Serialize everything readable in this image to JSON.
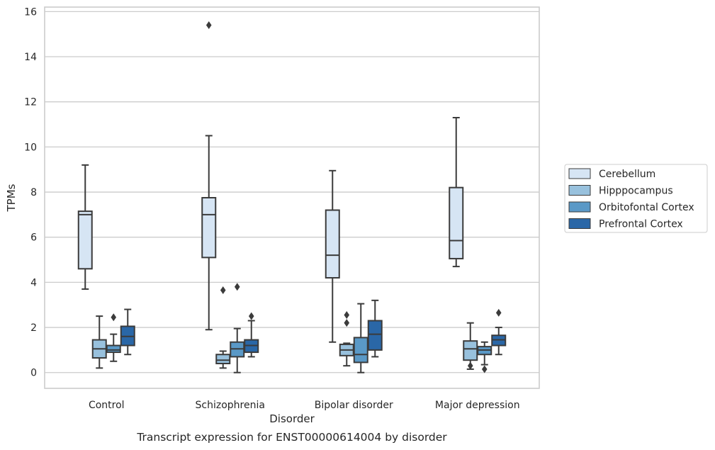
{
  "chart_data": {
    "type": "box",
    "caption": "Transcript expression for ENST00000614004 by disorder",
    "xlabel": "Disorder",
    "ylabel": "TPMs",
    "ylim": [
      -0.7,
      16.2
    ],
    "yticks": [
      0,
      2,
      4,
      6,
      8,
      10,
      12,
      14,
      16
    ],
    "grid": "horizontal",
    "legend_position": "right",
    "categories": [
      "Control",
      "Schizophrenia",
      "Bipolar disorder",
      "Major depression"
    ],
    "series": [
      {
        "name": "Cerebellum",
        "color": "#d6e5f4",
        "boxes": [
          {
            "whisker_low": 3.7,
            "q1": 4.6,
            "median": 7.0,
            "q3": 7.15,
            "whisker_high": 9.2,
            "outliers": []
          },
          {
            "whisker_low": 1.9,
            "q1": 5.1,
            "median": 7.0,
            "q3": 7.75,
            "whisker_high": 10.5,
            "outliers": [
              15.4
            ]
          },
          {
            "whisker_low": 1.35,
            "q1": 4.2,
            "median": 5.2,
            "q3": 7.2,
            "whisker_high": 8.95,
            "outliers": []
          },
          {
            "whisker_low": 4.7,
            "q1": 5.05,
            "median": 5.85,
            "q3": 8.2,
            "whisker_high": 11.3,
            "outliers": []
          }
        ]
      },
      {
        "name": "Hipppocampus",
        "color": "#98c1dd",
        "boxes": [
          {
            "whisker_low": 0.2,
            "q1": 0.65,
            "median": 1.05,
            "q3": 1.45,
            "whisker_high": 2.5,
            "outliers": []
          },
          {
            "whisker_low": 0.2,
            "q1": 0.4,
            "median": 0.55,
            "q3": 0.8,
            "whisker_high": 0.95,
            "outliers": [
              3.65
            ]
          },
          {
            "whisker_low": 0.3,
            "q1": 0.75,
            "median": 1.0,
            "q3": 1.25,
            "whisker_high": 1.3,
            "outliers": [
              2.2,
              2.55
            ]
          },
          {
            "whisker_low": 0.15,
            "q1": 0.55,
            "median": 1.05,
            "q3": 1.4,
            "whisker_high": 2.2,
            "outliers": [
              0.3
            ]
          }
        ]
      },
      {
        "name": "Orbitofontal Cortex",
        "color": "#5a99c7",
        "boxes": [
          {
            "whisker_low": 0.5,
            "q1": 0.9,
            "median": 1.0,
            "q3": 1.2,
            "whisker_high": 1.7,
            "outliers": [
              2.45
            ]
          },
          {
            "whisker_low": 0.0,
            "q1": 0.7,
            "median": 1.05,
            "q3": 1.35,
            "whisker_high": 1.95,
            "outliers": [
              3.8
            ]
          },
          {
            "whisker_low": 0.0,
            "q1": 0.45,
            "median": 0.8,
            "q3": 1.55,
            "whisker_high": 3.05,
            "outliers": []
          },
          {
            "whisker_low": 0.35,
            "q1": 0.8,
            "median": 1.0,
            "q3": 1.15,
            "whisker_high": 1.35,
            "outliers": [
              0.15
            ]
          }
        ]
      },
      {
        "name": "Prefrontal Cortex",
        "color": "#2a67a7",
        "boxes": [
          {
            "whisker_low": 0.8,
            "q1": 1.2,
            "median": 1.6,
            "q3": 2.05,
            "whisker_high": 2.8,
            "outliers": []
          },
          {
            "whisker_low": 0.7,
            "q1": 0.9,
            "median": 1.2,
            "q3": 1.45,
            "whisker_high": 2.3,
            "outliers": [
              2.5
            ]
          },
          {
            "whisker_low": 0.7,
            "q1": 1.0,
            "median": 1.7,
            "q3": 2.3,
            "whisker_high": 3.2,
            "outliers": []
          },
          {
            "whisker_low": 0.8,
            "q1": 1.2,
            "median": 1.45,
            "q3": 1.65,
            "whisker_high": 2.0,
            "outliers": [
              2.65
            ]
          }
        ]
      }
    ]
  }
}
